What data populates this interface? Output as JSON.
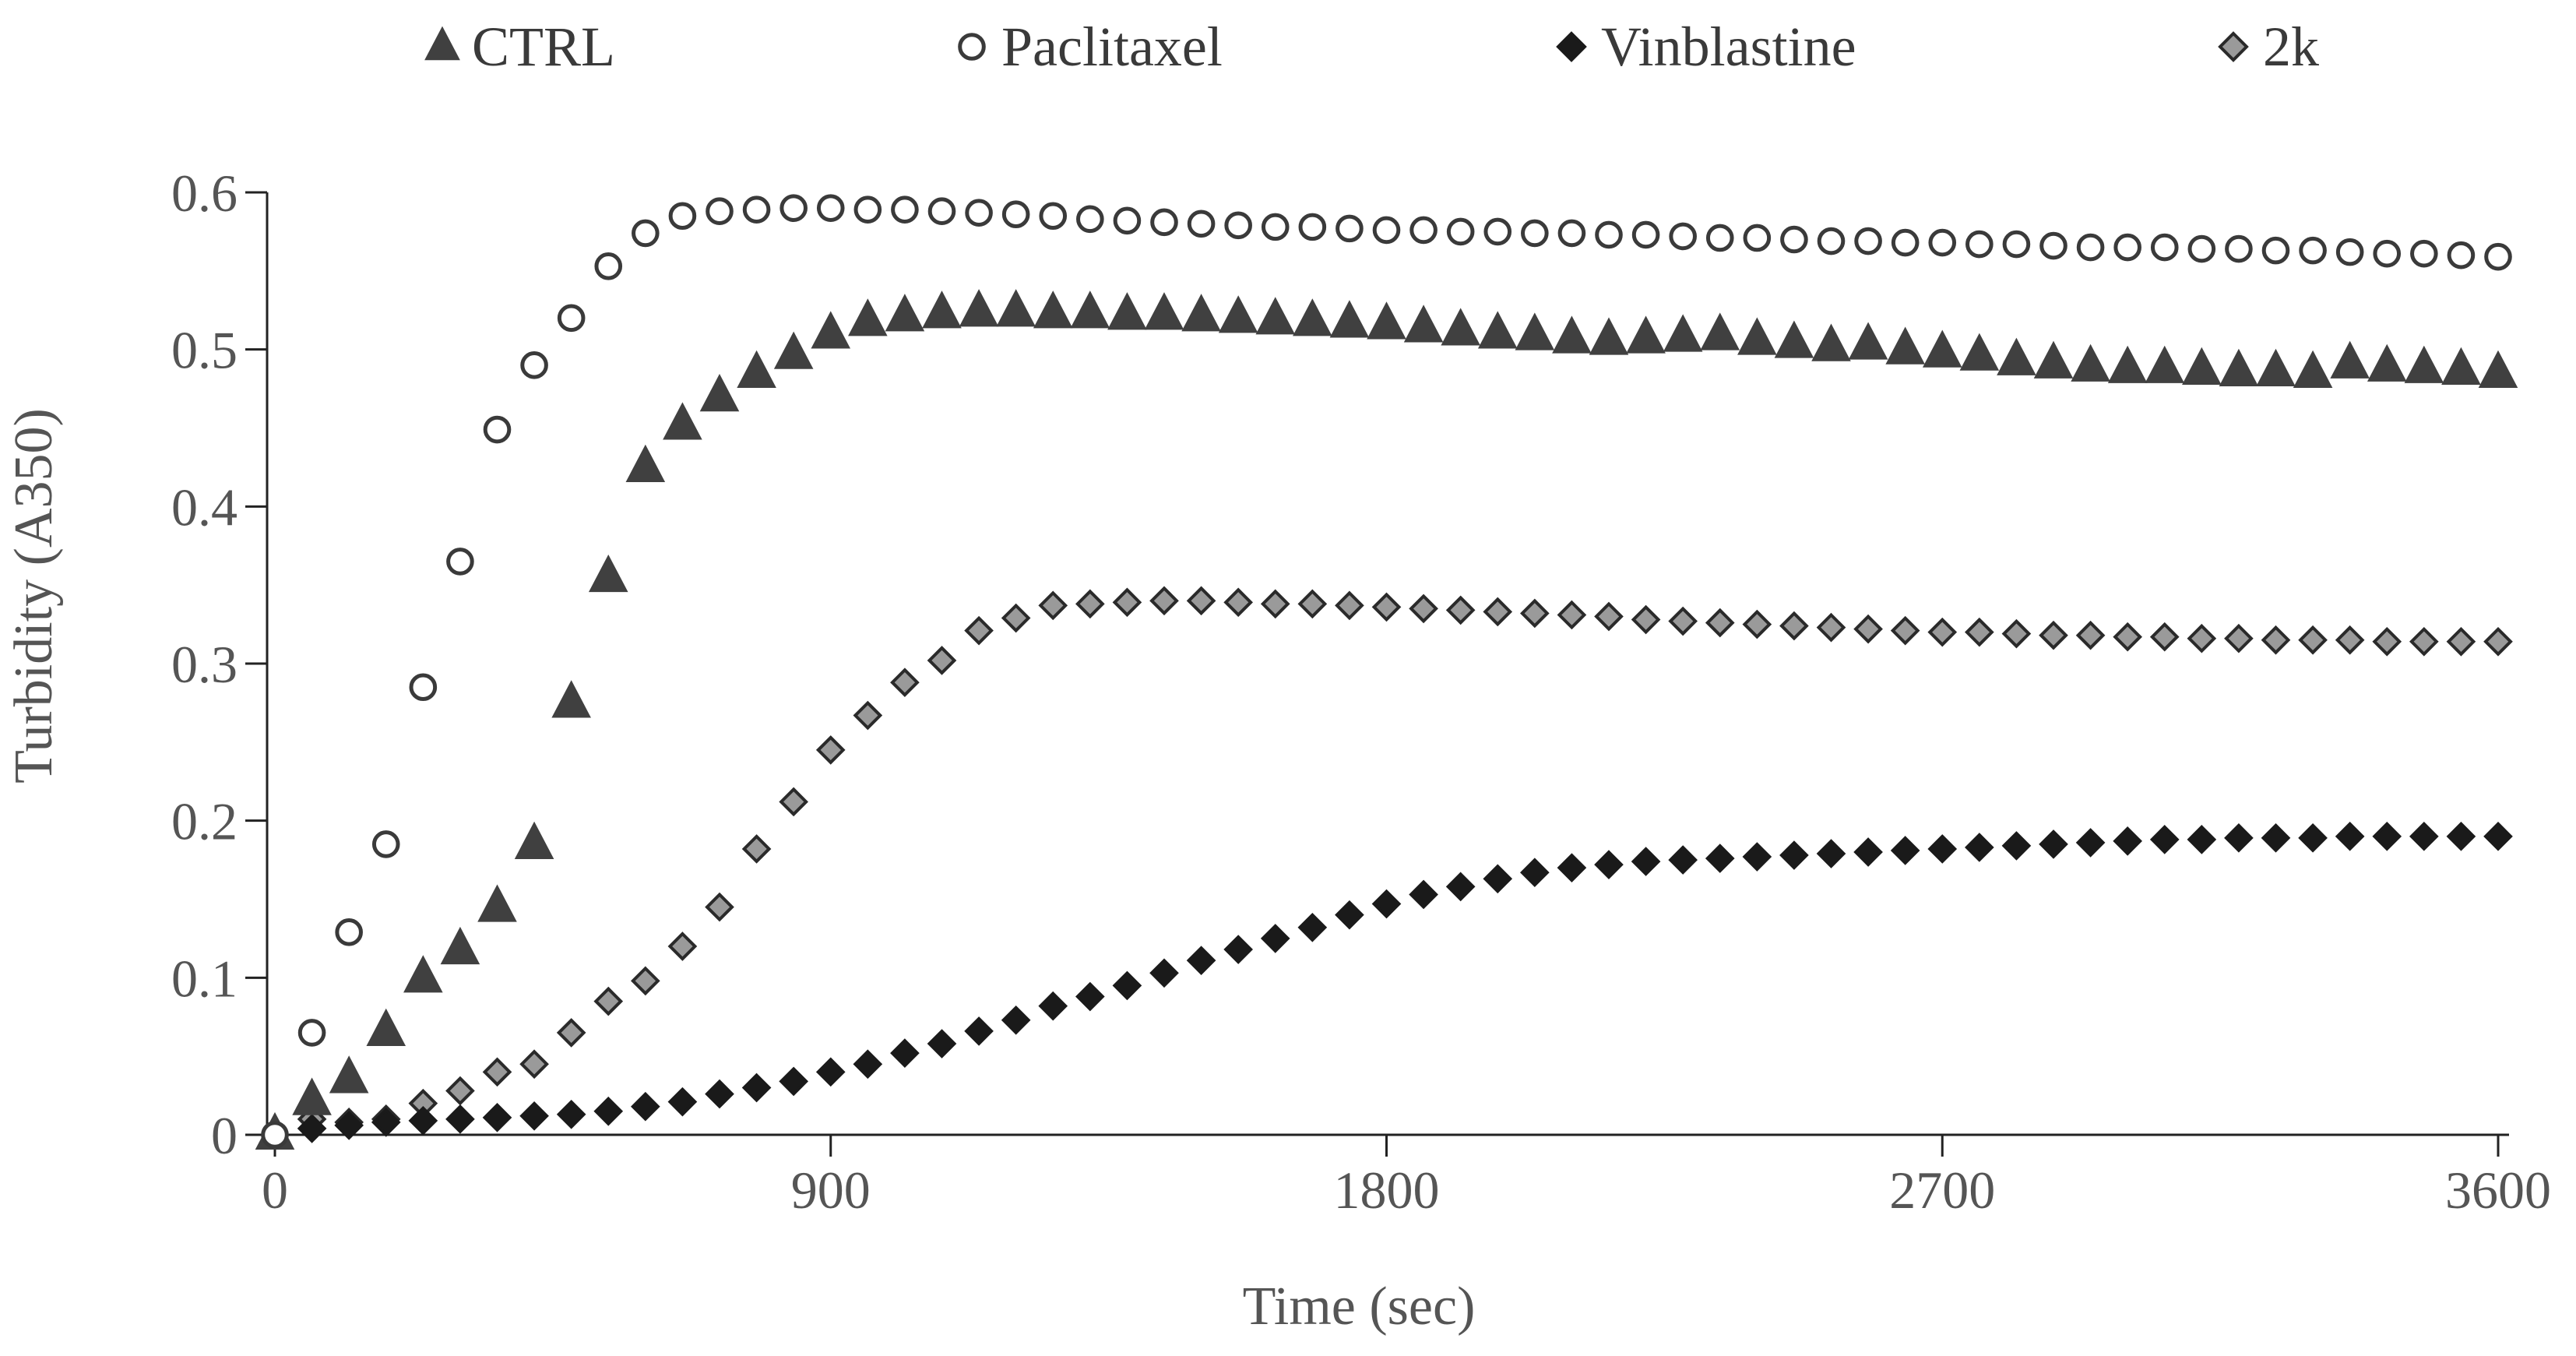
{
  "chart_data": {
    "type": "scatter",
    "title": "",
    "xlabel": "Time (sec)",
    "ylabel": "Turbidity (A350)",
    "xlim": [
      0,
      3600
    ],
    "ylim": [
      0,
      0.6
    ],
    "xticks": [
      0,
      900,
      1800,
      2700,
      3600
    ],
    "yticks": [
      0,
      0.1,
      0.2,
      0.3,
      0.4,
      0.5,
      0.6
    ],
    "xtick_labels": [
      "0",
      "900",
      "1800",
      "2700",
      "3600"
    ],
    "ytick_labels": [
      "0",
      "0.1",
      "0.2",
      "0.3",
      "0.4",
      "0.5",
      "0.6"
    ],
    "grid": false,
    "legend_position": "top",
    "x": [
      0,
      60,
      120,
      180,
      240,
      300,
      360,
      420,
      480,
      540,
      600,
      660,
      720,
      780,
      840,
      900,
      960,
      1020,
      1080,
      1140,
      1200,
      1260,
      1320,
      1380,
      1440,
      1500,
      1560,
      1620,
      1680,
      1740,
      1800,
      1860,
      1920,
      1980,
      2040,
      2100,
      2160,
      2220,
      2280,
      2340,
      2400,
      2460,
      2520,
      2580,
      2640,
      2700,
      2760,
      2820,
      2880,
      2940,
      3000,
      3060,
      3120,
      3180,
      3240,
      3300,
      3360,
      3420,
      3480,
      3540,
      3600
    ],
    "series": [
      {
        "name": "CTRL",
        "marker": "triangle",
        "fill": "#404040",
        "stroke": "#404040",
        "values": [
          0,
          0.022,
          0.036,
          0.066,
          0.1,
          0.118,
          0.145,
          0.185,
          0.275,
          0.355,
          0.425,
          0.452,
          0.47,
          0.485,
          0.497,
          0.51,
          0.518,
          0.521,
          0.523,
          0.524,
          0.524,
          0.523,
          0.523,
          0.522,
          0.522,
          0.521,
          0.52,
          0.519,
          0.518,
          0.517,
          0.516,
          0.514,
          0.512,
          0.51,
          0.509,
          0.507,
          0.506,
          0.507,
          0.508,
          0.509,
          0.506,
          0.504,
          0.502,
          0.503,
          0.5,
          0.498,
          0.496,
          0.493,
          0.491,
          0.489,
          0.488,
          0.488,
          0.487,
          0.486,
          0.486,
          0.485,
          0.491,
          0.489,
          0.488,
          0.487,
          0.485
        ]
      },
      {
        "name": "Paclitaxel",
        "marker": "circle",
        "fill": "#ffffff",
        "stroke": "#3a3a3a",
        "values": [
          0,
          0.065,
          0.129,
          0.185,
          0.285,
          0.365,
          0.449,
          0.49,
          0.52,
          0.553,
          0.574,
          0.585,
          0.588,
          0.589,
          0.59,
          0.59,
          0.589,
          0.589,
          0.588,
          0.587,
          0.586,
          0.585,
          0.583,
          0.582,
          0.581,
          0.58,
          0.579,
          0.578,
          0.578,
          0.577,
          0.576,
          0.576,
          0.575,
          0.575,
          0.574,
          0.574,
          0.573,
          0.573,
          0.572,
          0.571,
          0.571,
          0.57,
          0.569,
          0.569,
          0.568,
          0.568,
          0.567,
          0.567,
          0.566,
          0.565,
          0.565,
          0.565,
          0.564,
          0.564,
          0.563,
          0.563,
          0.562,
          0.561,
          0.561,
          0.56,
          0.559
        ]
      },
      {
        "name": "Vinblastine",
        "marker": "diamond",
        "fill": "#1a1a1a",
        "stroke": "#1a1a1a",
        "values": [
          0,
          0.004,
          0.006,
          0.008,
          0.009,
          0.01,
          0.011,
          0.012,
          0.013,
          0.015,
          0.018,
          0.021,
          0.026,
          0.03,
          0.034,
          0.04,
          0.045,
          0.052,
          0.058,
          0.066,
          0.073,
          0.082,
          0.088,
          0.095,
          0.103,
          0.111,
          0.118,
          0.125,
          0.132,
          0.14,
          0.147,
          0.153,
          0.158,
          0.163,
          0.167,
          0.17,
          0.172,
          0.174,
          0.175,
          0.176,
          0.177,
          0.178,
          0.179,
          0.18,
          0.181,
          0.182,
          0.183,
          0.184,
          0.185,
          0.186,
          0.187,
          0.188,
          0.188,
          0.189,
          0.189,
          0.189,
          0.19,
          0.19,
          0.19,
          0.19,
          0.19
        ]
      },
      {
        "name": "2k",
        "marker": "diamond",
        "fill": "#9a9a9a",
        "stroke": "#2a2a2a",
        "values": [
          0,
          0.01,
          0.008,
          0.01,
          0.02,
          0.028,
          0.04,
          0.045,
          0.065,
          0.085,
          0.098,
          0.12,
          0.145,
          0.182,
          0.212,
          0.245,
          0.267,
          0.288,
          0.302,
          0.321,
          0.329,
          0.337,
          0.338,
          0.339,
          0.34,
          0.34,
          0.339,
          0.338,
          0.338,
          0.337,
          0.336,
          0.335,
          0.334,
          0.333,
          0.332,
          0.331,
          0.33,
          0.328,
          0.327,
          0.326,
          0.325,
          0.324,
          0.323,
          0.322,
          0.321,
          0.32,
          0.32,
          0.319,
          0.318,
          0.318,
          0.317,
          0.317,
          0.316,
          0.316,
          0.315,
          0.315,
          0.315,
          0.314,
          0.314,
          0.314,
          0.314
        ]
      }
    ]
  }
}
